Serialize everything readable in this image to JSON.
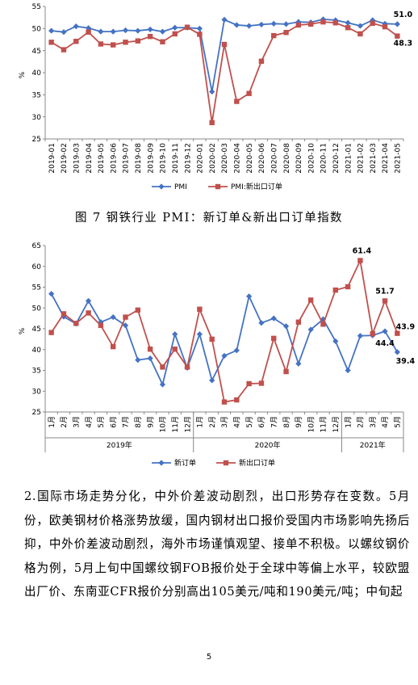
{
  "chart_data": [
    {
      "type": "line",
      "title": "",
      "xlabel": "",
      "ylabel": "%",
      "ylim": [
        25,
        55
      ],
      "yticks": [
        "25",
        "30",
        "35",
        "40",
        "45",
        "50",
        "55"
      ],
      "grid": false,
      "legend": "bottom",
      "categories": [
        "2019-01",
        "2019-02",
        "2019-03",
        "2019-04",
        "2019-05",
        "2019-06",
        "2019-07",
        "2019-08",
        "2019-09",
        "2019-10",
        "2019-11",
        "2019-12",
        "2020-01",
        "2020-02",
        "2020-03",
        "2020-04",
        "2020-05",
        "2020-06",
        "2020-07",
        "2020-08",
        "2020-09",
        "2020-10",
        "2020-11",
        "2020-12",
        "2021-01",
        "2021-02",
        "2021-03",
        "2021-04",
        "2021-05"
      ],
      "series": [
        {
          "name": "PMI",
          "color": "#4472C4",
          "marker": "diamond",
          "values": [
            49.5,
            49.2,
            50.5,
            50.1,
            49.3,
            49.3,
            49.6,
            49.5,
            49.8,
            49.3,
            50.2,
            50.2,
            50.0,
            35.7,
            52.0,
            50.8,
            50.6,
            50.9,
            51.1,
            51.0,
            51.5,
            51.4,
            52.1,
            51.9,
            51.3,
            50.6,
            51.9,
            51.1,
            51.0
          ]
        },
        {
          "name": "PMI:新出口订单",
          "color": "#C0504D",
          "marker": "square",
          "values": [
            46.9,
            45.2,
            47.1,
            49.2,
            46.5,
            46.3,
            46.9,
            47.2,
            48.2,
            47.0,
            48.8,
            50.3,
            48.7,
            28.7,
            46.4,
            33.5,
            35.3,
            42.6,
            48.4,
            49.1,
            50.8,
            51.0,
            51.5,
            51.3,
            50.2,
            48.8,
            51.2,
            50.4,
            48.3
          ]
        }
      ],
      "data_labels": [
        {
          "text": "51.0"
        },
        {
          "text": "48.3"
        }
      ]
    },
    {
      "type": "line",
      "title": "",
      "xlabel": "",
      "ylabel": "%",
      "ylim": [
        25,
        65
      ],
      "yticks": [
        "25",
        "30",
        "35",
        "40",
        "45",
        "50",
        "55",
        "60",
        "65"
      ],
      "grid": false,
      "legend": "bottom",
      "categories": [
        "1月",
        "2月",
        "3月",
        "4月",
        "5月",
        "6月",
        "7月",
        "8月",
        "9月",
        "10月",
        "11月",
        "12月",
        "1月",
        "2月",
        "3月",
        "4月",
        "5月",
        "6月",
        "7月",
        "8月",
        "9月",
        "10月",
        "11月",
        "12月",
        "1月",
        "2月",
        "3月",
        "4月",
        "5月"
      ],
      "groups": [
        {
          "label": "2019年",
          "from": 0,
          "to": 11
        },
        {
          "label": "2020年",
          "from": 12,
          "to": 23
        },
        {
          "label": "2021年",
          "from": 24,
          "to": 28
        }
      ],
      "series": [
        {
          "name": "新订单",
          "color": "#4472C4",
          "marker": "diamond",
          "values": [
            53.4,
            47.9,
            46.2,
            51.7,
            46.6,
            47.8,
            45.8,
            37.5,
            37.9,
            31.6,
            43.7,
            35.6,
            43.7,
            32.6,
            38.5,
            39.8,
            52.8,
            46.4,
            47.5,
            45.6,
            36.6,
            44.8,
            47.3,
            42.0,
            35.0,
            43.3,
            43.4,
            44.4,
            39.4
          ]
        },
        {
          "name": "新出口订单",
          "color": "#C0504D",
          "marker": "square",
          "values": [
            44.1,
            48.6,
            46.3,
            48.8,
            45.8,
            40.7,
            47.8,
            49.5,
            40.1,
            35.8,
            40.1,
            35.8,
            49.7,
            42.5,
            27.4,
            27.9,
            31.8,
            31.9,
            42.7,
            34.7,
            46.6,
            51.9,
            46.1,
            54.3,
            55.1,
            61.4,
            43.8,
            51.7,
            43.9
          ]
        }
      ],
      "data_labels": [
        {
          "text": "61.4"
        },
        {
          "text": "51.7"
        },
        {
          "text": "43.9"
        },
        {
          "text": "44.4"
        },
        {
          "text": "39.4"
        }
      ]
    }
  ],
  "caption": "图 7  钢铁行业 PMI：新订单&新出口订单指数",
  "paragraph": "2.国际市场走势分化，中外价差波动剧烈，出口形势存在变数。5月份，欧美钢材价格涨势放缓，国内钢材出口报价受国内市场影响先扬后抑，中外价差波动剧烈，海外市场谨慎观望、接单不积极。以螺纹钢价格为例，5月上旬中国螺纹钢FOB报价处于全球中等偏上水平，较欧盟出厂价、东南亚CFR报价分别高出105美元/吨和190美元/吨；中旬起",
  "page_number": "5"
}
